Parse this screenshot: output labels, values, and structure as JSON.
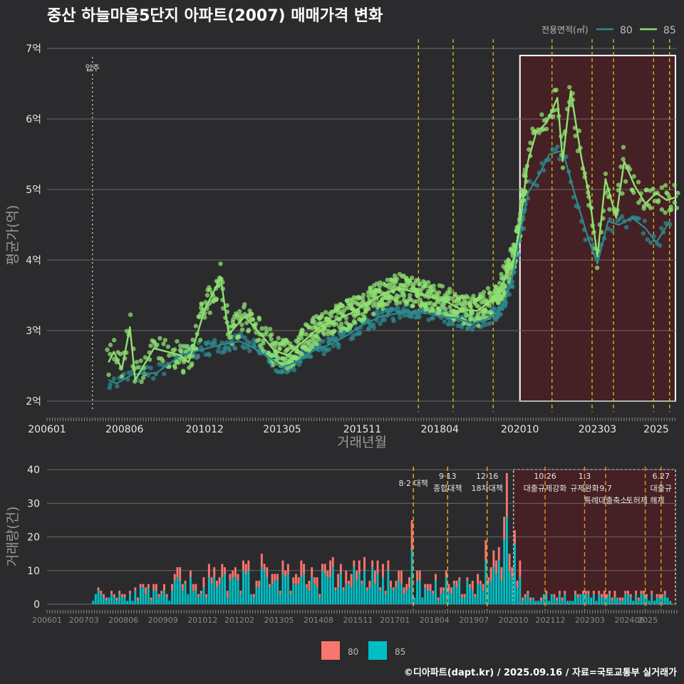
{
  "title": "중산 하늘마을5단지 아파트(2007) 매매가격 변화",
  "footer": "©디아파트(dapt.kr) / 2025.09.16 / 자료=국토교통부 실거래가",
  "colors": {
    "series80": "#2e8a8f",
    "series85": "#8fe072",
    "bar80": "#f8766d",
    "bar85": "#00bfc4",
    "highlight": "#4a1f23",
    "policy": "#e0c020",
    "policy_low": "#f0a020"
  },
  "chart_data": [
    {
      "type": "scatter",
      "title": "중산 하늘마을5단지 아파트(2007) 매매가격 변화",
      "xlabel": "거래년월",
      "ylabel": "평균가(억)",
      "x_ticks": [
        "200601",
        "200806",
        "201012",
        "201305",
        "201511",
        "201804",
        "202010",
        "202303",
        "2025"
      ],
      "y_ticks": [
        "2억",
        "3억",
        "4억",
        "5억",
        "6억",
        "7억"
      ],
      "ylim": [
        2,
        7
      ],
      "xlim": [
        "2006-01",
        "2025-12"
      ],
      "move_in_label": "입주",
      "move_in_date": "2007-06",
      "highlight_box": {
        "from": "2020-10",
        "to": "2025-12",
        "ymin": 2.0,
        "ymax": 6.9
      },
      "policy_dates": [
        "2017-08",
        "2018-09",
        "2019-12",
        "2021-10",
        "2023-01",
        "2023-09",
        "2024-12",
        "2025-06"
      ],
      "legend_title": "전용면적(㎡)",
      "legend_position": "top-right",
      "series": [
        {
          "name": "80",
          "points": [
            [
              "2007-12",
              2.3
            ],
            [
              "2008-03",
              2.25
            ],
            [
              "2008-09",
              2.38
            ],
            [
              "2009-06",
              2.4
            ],
            [
              "2010-03",
              2.65
            ],
            [
              "2010-10",
              2.72
            ],
            [
              "2011-06",
              2.8
            ],
            [
              "2012-01",
              2.85
            ],
            [
              "2012-06",
              2.76
            ],
            [
              "2012-12",
              2.62
            ],
            [
              "2013-05",
              2.48
            ],
            [
              "2013-10",
              2.55
            ],
            [
              "2014-05",
              2.72
            ],
            [
              "2014-12",
              2.82
            ],
            [
              "2015-06",
              2.95
            ],
            [
              "2015-11",
              3.08
            ],
            [
              "2016-06",
              3.2
            ],
            [
              "2017-01",
              3.25
            ],
            [
              "2017-08",
              3.28
            ],
            [
              "2018-04",
              3.2
            ],
            [
              "2018-10",
              3.18
            ],
            [
              "2019-04",
              3.1
            ],
            [
              "2019-09",
              3.15
            ],
            [
              "2020-03",
              3.3
            ],
            [
              "2020-07",
              3.72
            ],
            [
              "2020-10",
              4.35
            ],
            [
              "2021-01",
              4.95
            ],
            [
              "2021-05",
              5.2
            ],
            [
              "2021-09",
              5.5
            ],
            [
              "2022-02",
              5.55
            ],
            [
              "2022-06",
              5.0
            ],
            [
              "2022-12",
              4.25
            ],
            [
              "2023-03",
              3.95
            ],
            [
              "2023-07",
              4.55
            ],
            [
              "2023-11",
              4.5
            ],
            [
              "2024-04",
              4.6
            ],
            [
              "2024-09",
              4.45
            ],
            [
              "2025-01",
              4.25
            ],
            [
              "2025-06",
              4.55
            ]
          ]
        },
        {
          "name": "85",
          "points": [
            [
              "2007-12",
              2.55
            ],
            [
              "2008-02",
              2.7
            ],
            [
              "2008-05",
              2.45
            ],
            [
              "2008-08",
              3.05
            ],
            [
              "2008-10",
              2.3
            ],
            [
              "2009-05",
              2.75
            ],
            [
              "2010-03",
              2.65
            ],
            [
              "2010-06",
              2.55
            ],
            [
              "2010-12",
              3.3
            ],
            [
              "2011-06",
              3.75
            ],
            [
              "2011-09",
              2.95
            ],
            [
              "2012-03",
              3.2
            ],
            [
              "2012-09",
              2.95
            ],
            [
              "2013-02",
              2.72
            ],
            [
              "2013-07",
              2.65
            ],
            [
              "2014-01",
              2.85
            ],
            [
              "2014-07",
              3.05
            ],
            [
              "2015-01",
              3.15
            ],
            [
              "2015-07",
              3.25
            ],
            [
              "2016-01",
              3.4
            ],
            [
              "2016-07",
              3.52
            ],
            [
              "2017-01",
              3.6
            ],
            [
              "2017-06",
              3.55
            ],
            [
              "2017-12",
              3.48
            ],
            [
              "2018-06",
              3.42
            ],
            [
              "2018-12",
              3.3
            ],
            [
              "2019-06",
              3.28
            ],
            [
              "2019-12",
              3.45
            ],
            [
              "2020-04",
              3.7
            ],
            [
              "2020-08",
              4.05
            ],
            [
              "2020-10",
              4.5
            ],
            [
              "2021-01",
              5.4
            ],
            [
              "2021-04",
              5.8
            ],
            [
              "2021-08",
              5.95
            ],
            [
              "2021-12",
              6.3
            ],
            [
              "2022-02",
              5.4
            ],
            [
              "2022-05",
              6.4
            ],
            [
              "2022-09",
              5.45
            ],
            [
              "2022-12",
              4.9
            ],
            [
              "2023-03",
              4.05
            ],
            [
              "2023-06",
              5.15
            ],
            [
              "2023-10",
              4.6
            ],
            [
              "2024-01",
              5.4
            ],
            [
              "2024-05",
              5.05
            ],
            [
              "2024-09",
              4.8
            ],
            [
              "2025-01",
              4.95
            ],
            [
              "2025-05",
              4.85
            ],
            [
              "2025-09",
              4.9
            ]
          ]
        }
      ]
    },
    {
      "type": "bar",
      "xlabel": "",
      "ylabel": "거래량(건)",
      "ylim": [
        0,
        42
      ],
      "y_ticks": [
        "0",
        "10",
        "20",
        "30",
        "40"
      ],
      "x_ticks": [
        "200601",
        "200703",
        "200806",
        "200909",
        "201012",
        "201202",
        "201305",
        "201408",
        "201511",
        "201701",
        "201804",
        "201907",
        "202010",
        "202112",
        "202303",
        "202406",
        "2025"
      ],
      "legend": [
        "80",
        "85"
      ],
      "legend_position": "bottom",
      "policy_annotations": [
        {
          "date": "2017-08",
          "lines": [
            "8·2 대책"
          ]
        },
        {
          "date": "2018-09",
          "lines": [
            "9·13",
            "종합대책"
          ]
        },
        {
          "date": "2019-12",
          "lines": [
            "12·16",
            "18차대책"
          ]
        },
        {
          "date": "2021-10",
          "lines": [
            "10.26",
            "대출규제강화"
          ]
        },
        {
          "date": "2023-01",
          "lines": [
            "1.3",
            "규제완화"
          ]
        },
        {
          "date": "2023-09",
          "lines": [
            "",
            "9.7",
            "특례대출축소"
          ]
        },
        {
          "date": "2024-12",
          "lines": [
            "",
            "",
            "토허제 해제"
          ]
        },
        {
          "date": "2025-06",
          "lines": [
            "6.27",
            "대출규"
          ]
        }
      ]
    }
  ]
}
